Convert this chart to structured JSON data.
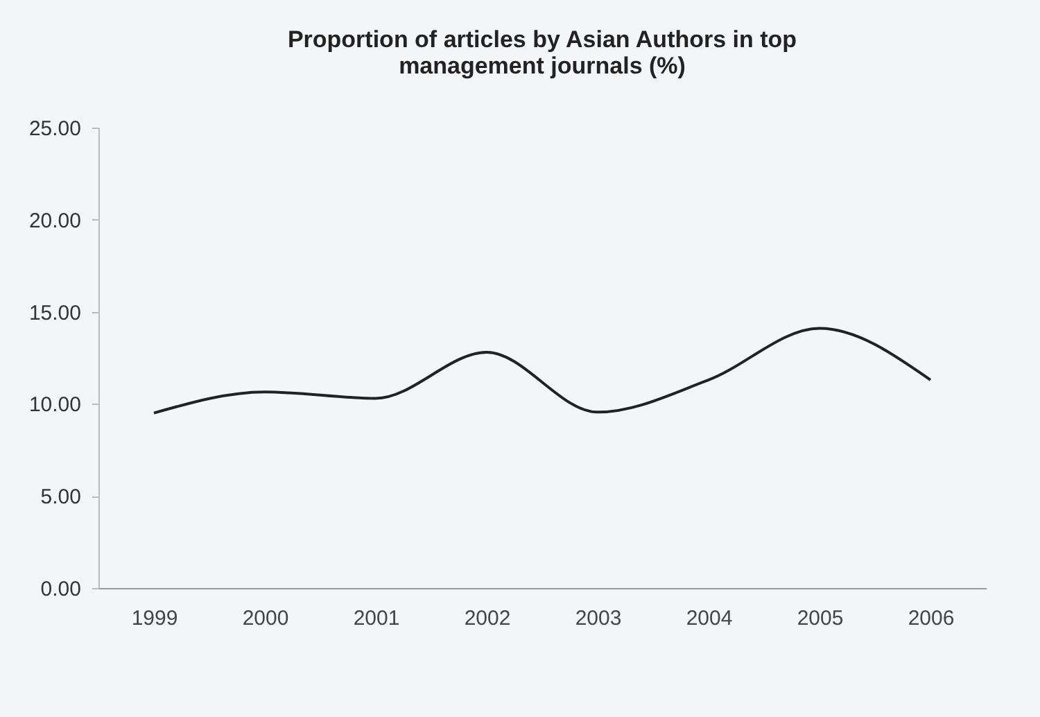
{
  "chart_data": {
    "type": "line",
    "title": "Proportion of articles by Asian Authors in top management journals (%)",
    "categories": [
      "1999",
      "2000",
      "2001",
      "2002",
      "2003",
      "2004",
      "2005",
      "2006"
    ],
    "series": [
      {
        "color": "#222222",
        "values": [
          9.5,
          10.65,
          10.3,
          12.8,
          9.55,
          11.3,
          14.1,
          11.3
        ]
      }
    ],
    "ylim": [
      0,
      25
    ],
    "yticks": [
      {
        "value": 0,
        "label": "0.00"
      },
      {
        "value": 5,
        "label": "5.00"
      },
      {
        "value": 10,
        "label": "10.00"
      },
      {
        "value": 15,
        "label": "15.00"
      },
      {
        "value": 20,
        "label": "20.00"
      },
      {
        "value": 25,
        "label": "25.00"
      }
    ],
    "grid": false,
    "legend": false,
    "marker": "none",
    "line_style": "solid"
  }
}
